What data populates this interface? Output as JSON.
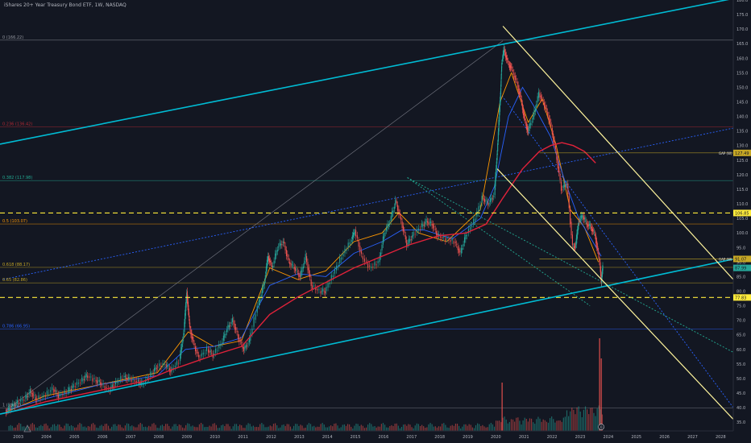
{
  "header": {
    "title": "iShares 20+ Year Treasury Bond ETF, 1W, NASDAQ"
  },
  "chart_data": {
    "type": "line",
    "title": "iShares 20+ Year Treasury Bond ETF, 1W, NASDAQ",
    "xlabel": "",
    "ylabel": "",
    "x_range": [
      2002.4,
      2028.5
    ],
    "y_range": [
      32,
      180
    ],
    "x_ticks": [
      "2003",
      "2004",
      "2005",
      "2006",
      "2007",
      "2008",
      "2009",
      "2010",
      "2011",
      "2012",
      "2013",
      "2014",
      "2015",
      "2016",
      "2017",
      "2018",
      "2019",
      "2020",
      "2021",
      "2022",
      "2023",
      "2024",
      "2025",
      "2026",
      "2027",
      "2028"
    ],
    "y_ticks": [
      35,
      40,
      45,
      50,
      55,
      60,
      65,
      70,
      75,
      80,
      85,
      90,
      95,
      100,
      105,
      110,
      115,
      120,
      125,
      130,
      135,
      140,
      145,
      150,
      155,
      160,
      165,
      170,
      175,
      180
    ],
    "grid": false,
    "price": [
      [
        2002.6,
        38.5
      ],
      [
        2002.8,
        40
      ],
      [
        2003.0,
        41.5
      ],
      [
        2003.3,
        43
      ],
      [
        2003.5,
        45.5
      ],
      [
        2003.7,
        43
      ],
      [
        2004.0,
        44
      ],
      [
        2004.3,
        46.5
      ],
      [
        2004.5,
        44
      ],
      [
        2004.8,
        45.5
      ],
      [
        2005.0,
        47
      ],
      [
        2005.3,
        49
      ],
      [
        2005.5,
        51
      ],
      [
        2005.8,
        49.5
      ],
      [
        2006.0,
        48.5
      ],
      [
        2006.3,
        46
      ],
      [
        2006.5,
        48
      ],
      [
        2006.8,
        50.5
      ],
      [
        2007.0,
        50
      ],
      [
        2007.3,
        49
      ],
      [
        2007.5,
        48
      ],
      [
        2007.8,
        51.5
      ],
      [
        2008.0,
        54
      ],
      [
        2008.3,
        55
      ],
      [
        2008.5,
        52.5
      ],
      [
        2008.8,
        56
      ],
      [
        2008.95,
        66
      ],
      [
        2009.05,
        80
      ],
      [
        2009.15,
        68
      ],
      [
        2009.3,
        62
      ],
      [
        2009.5,
        57
      ],
      [
        2009.8,
        60
      ],
      [
        2010.0,
        58
      ],
      [
        2010.3,
        62
      ],
      [
        2010.5,
        67
      ],
      [
        2010.7,
        70
      ],
      [
        2010.9,
        64
      ],
      [
        2011.1,
        60
      ],
      [
        2011.3,
        63
      ],
      [
        2011.6,
        75
      ],
      [
        2011.8,
        82
      ],
      [
        2011.95,
        92
      ],
      [
        2012.1,
        88
      ],
      [
        2012.3,
        95
      ],
      [
        2012.5,
        97
      ],
      [
        2012.7,
        90
      ],
      [
        2012.9,
        88
      ],
      [
        2013.1,
        85
      ],
      [
        2013.3,
        92
      ],
      [
        2013.5,
        82
      ],
      [
        2013.8,
        80
      ],
      [
        2014.0,
        80
      ],
      [
        2014.3,
        86
      ],
      [
        2014.6,
        92
      ],
      [
        2014.9,
        97
      ],
      [
        2015.05,
        101
      ],
      [
        2015.3,
        92
      ],
      [
        2015.6,
        88
      ],
      [
        2015.9,
        90
      ],
      [
        2016.1,
        100
      ],
      [
        2016.3,
        104
      ],
      [
        2016.5,
        111
      ],
      [
        2016.7,
        104
      ],
      [
        2016.9,
        96
      ],
      [
        2017.1,
        99
      ],
      [
        2017.4,
        102
      ],
      [
        2017.6,
        104
      ],
      [
        2017.8,
        103
      ],
      [
        2018.0,
        99
      ],
      [
        2018.3,
        98
      ],
      [
        2018.6,
        97
      ],
      [
        2018.8,
        93
      ],
      [
        2019.0,
        99
      ],
      [
        2019.3,
        104
      ],
      [
        2019.6,
        112
      ],
      [
        2019.8,
        110
      ],
      [
        2020.0,
        113
      ],
      [
        2020.1,
        128
      ],
      [
        2020.2,
        145
      ],
      [
        2020.25,
        158
      ],
      [
        2020.35,
        163
      ],
      [
        2020.5,
        158
      ],
      [
        2020.6,
        157
      ],
      [
        2020.8,
        152
      ],
      [
        2020.95,
        146
      ],
      [
        2021.1,
        138
      ],
      [
        2021.2,
        135
      ],
      [
        2021.4,
        140
      ],
      [
        2021.6,
        148
      ],
      [
        2021.8,
        144
      ],
      [
        2022.0,
        138
      ],
      [
        2022.2,
        128
      ],
      [
        2022.4,
        115
      ],
      [
        2022.6,
        117
      ],
      [
        2022.8,
        95
      ],
      [
        2022.9,
        96
      ],
      [
        2023.0,
        104
      ],
      [
        2023.15,
        106
      ],
      [
        2023.3,
        103
      ],
      [
        2023.45,
        102
      ],
      [
        2023.6,
        99
      ],
      [
        2023.75,
        90
      ],
      [
        2023.8,
        83
      ],
      [
        2023.85,
        87.99
      ]
    ],
    "ma_red": [
      [
        2002.6,
        38
      ],
      [
        2004,
        42
      ],
      [
        2006,
        46
      ],
      [
        2007.5,
        49
      ],
      [
        2008.5,
        53
      ],
      [
        2010,
        58
      ],
      [
        2011,
        61
      ],
      [
        2012,
        72
      ],
      [
        2013,
        78
      ],
      [
        2014,
        83
      ],
      [
        2015,
        88
      ],
      [
        2016,
        92
      ],
      [
        2017,
        96
      ],
      [
        2018,
        99
      ],
      [
        2019,
        100
      ],
      [
        2019.7,
        103
      ],
      [
        2020.3,
        112
      ],
      [
        2021,
        122
      ],
      [
        2021.6,
        128
      ],
      [
        2022,
        130
      ],
      [
        2022.4,
        131
      ],
      [
        2022.8,
        130
      ],
      [
        2023.2,
        128
      ],
      [
        2023.6,
        124
      ]
    ],
    "ma_blue": [
      [
        2002.6,
        39
      ],
      [
        2004,
        43
      ],
      [
        2006,
        48
      ],
      [
        2008,
        51
      ],
      [
        2009,
        60
      ],
      [
        2010,
        61
      ],
      [
        2011,
        64
      ],
      [
        2012,
        82
      ],
      [
        2013,
        86
      ],
      [
        2014,
        85
      ],
      [
        2015,
        93
      ],
      [
        2016,
        97
      ],
      [
        2016.7,
        101
      ],
      [
        2017.5,
        101
      ],
      [
        2018.5,
        98
      ],
      [
        2019.5,
        105
      ],
      [
        2020,
        116
      ],
      [
        2020.5,
        140
      ],
      [
        2021,
        150
      ],
      [
        2021.5,
        142
      ],
      [
        2022,
        133
      ],
      [
        2022.5,
        118
      ],
      [
        2023,
        105
      ],
      [
        2023.5,
        97
      ],
      [
        2023.8,
        92
      ]
    ],
    "ma_orange": [
      [
        2002.6,
        38.5
      ],
      [
        2004,
        44
      ],
      [
        2006,
        48
      ],
      [
        2008,
        52
      ],
      [
        2009.1,
        66
      ],
      [
        2010,
        61
      ],
      [
        2011,
        63
      ],
      [
        2012,
        88
      ],
      [
        2013,
        84
      ],
      [
        2014,
        87
      ],
      [
        2015,
        97
      ],
      [
        2016,
        100
      ],
      [
        2016.6,
        107
      ],
      [
        2017.3,
        100
      ],
      [
        2018.3,
        97
      ],
      [
        2019.5,
        108
      ],
      [
        2020.2,
        145
      ],
      [
        2020.6,
        155
      ],
      [
        2021.2,
        138
      ],
      [
        2021.7,
        146
      ],
      [
        2022.2,
        130
      ],
      [
        2022.7,
        108
      ],
      [
        2023.2,
        102
      ],
      [
        2023.7,
        90
      ]
    ],
    "fib_levels": [
      {
        "label": "0 (166.22)",
        "value": 166.22,
        "color": "#9598a1"
      },
      {
        "label": "0.236 (136.42)",
        "value": 136.42,
        "color": "#b22833"
      },
      {
        "label": "0.382 (117.98)",
        "value": 117.98,
        "color": "#22ab94"
      },
      {
        "label": "0.5 (103.07)",
        "value": 103.07,
        "color": "#ff9800"
      },
      {
        "label": "0.618 (88.17)",
        "value": 88.17,
        "color": "#c7a825"
      },
      {
        "label": "0.65 (82.86)",
        "value": 82.86,
        "color": "#c7a825"
      },
      {
        "label": "0.786 (66.95)",
        "value": 66.95,
        "color": "#2962ff"
      },
      {
        "label": "1 (39.92)",
        "value": 39.92,
        "color": "#9598a1"
      }
    ],
    "dashed_levels": [
      {
        "value": 106.85,
        "label": "106.85"
      },
      {
        "value": 77.83,
        "label": "77.83"
      }
    ],
    "price_tags": [
      {
        "value": 127.49,
        "prefix": "GAP (W)",
        "label": "127.49",
        "bg": "#c7a825"
      },
      {
        "value": 91.07,
        "prefix": "GAP (W)",
        "label": "91.07",
        "bg": "#c7a825"
      },
      {
        "value": 87.99,
        "prefix": "",
        "label": "87.99",
        "bg": "#26a69a"
      }
    ],
    "channel_cyan": [
      {
        "from": [
          2002.4,
          130.5
        ],
        "to": [
          2028.5,
          180.5
        ]
      },
      {
        "from": [
          2002.4,
          37.8
        ],
        "to": [
          2028.5,
          91
        ]
      }
    ],
    "channel_yellow": [
      {
        "from": [
          2020.3,
          171
        ],
        "to": [
          2028.5,
          84
        ]
      },
      {
        "from": [
          2020.1,
          122
        ],
        "to": [
          2028.5,
          36
        ]
      }
    ],
    "dotted_lines": [
      {
        "from": [
          2002.5,
          84
        ],
        "to": [
          2028.5,
          136
        ],
        "color": "#2962ff"
      },
      {
        "from": [
          2016.9,
          119
        ],
        "to": [
          2028.5,
          59
        ],
        "color": "#22ab94"
      },
      {
        "from": [
          2020.2,
          148
        ],
        "to": [
          2028.5,
          40
        ],
        "color": "#2962ff"
      },
      {
        "from": [
          2016.9,
          119
        ],
        "to": [
          2023.4,
          75
        ],
        "color": "#22ab94"
      }
    ],
    "diagonal_grey": {
      "from": [
        2002.6,
        39
      ],
      "to": [
        2020.3,
        166
      ]
    },
    "marker_label": "0"
  }
}
